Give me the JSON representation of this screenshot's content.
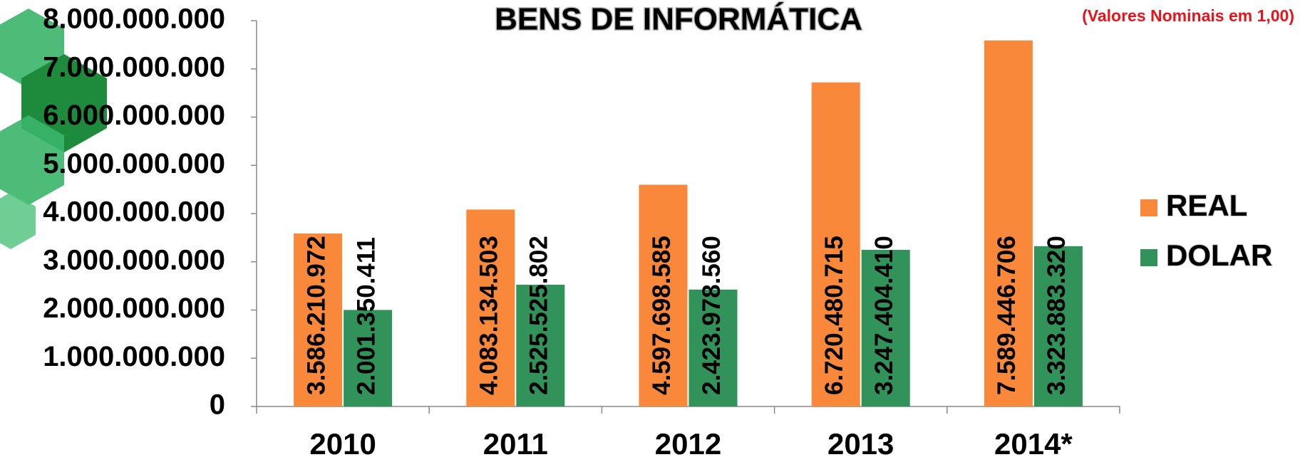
{
  "chart_data": {
    "type": "bar",
    "title": "BENS DE INFORMÁTICA",
    "subtitle": "(Valores Nominais em 1,00)",
    "categories": [
      "2010",
      "2011",
      "2012",
      "2013",
      "2014*"
    ],
    "series": [
      {
        "name": "REAL",
        "color": "#f9883b",
        "values": [
          3586210972,
          4083134503,
          4597698585,
          6720480715,
          7589446706
        ],
        "value_labels": [
          "3.586.210.972",
          "4.083.134.503",
          "4.597.698.585",
          "6.720.480.715",
          "7.589.446.706"
        ]
      },
      {
        "name": "DOLAR",
        "color": "#31935a",
        "values": [
          2001350411,
          2525525802,
          2423978560,
          3247404410,
          3323883320
        ],
        "value_labels": [
          "2.001.350.411",
          "2.525.525.802",
          "2.423.978.560",
          "3.247.404.410",
          "3.323.883.320"
        ]
      }
    ],
    "ylim": [
      0,
      8000000000
    ],
    "yticks": [
      0,
      {
        "value": 1000000000,
        "label": "1.000.000.000"
      },
      {
        "value": 2000000000,
        "label": "2.000.000.000"
      },
      {
        "value": 3000000000,
        "label": "3.000.000.000"
      },
      {
        "value": 4000000000,
        "label": "4.000.000.000"
      },
      {
        "value": 5000000000,
        "label": "5.000.000.000"
      },
      {
        "value": 6000000000,
        "label": "6.000.000.000"
      },
      {
        "value": 7000000000,
        "label": "7.000.000.000"
      },
      {
        "value": 8000000000,
        "label": "8.000.000.000"
      }
    ],
    "legend": "right"
  }
}
